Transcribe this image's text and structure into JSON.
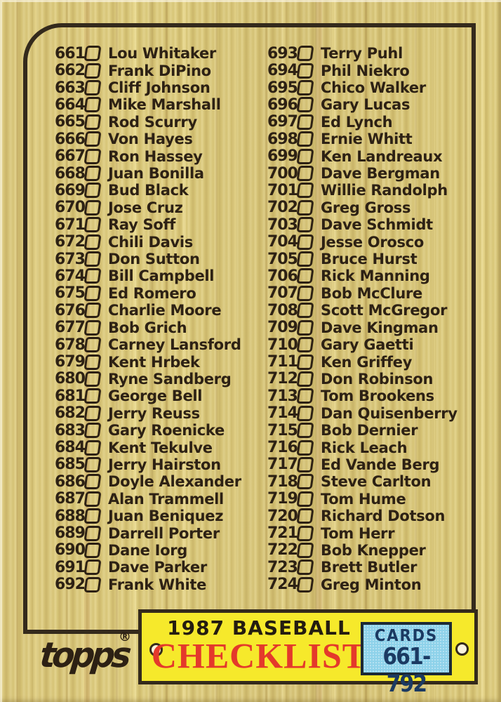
{
  "card": {
    "brand_logo": "topps",
    "registered_mark": "®",
    "banner": {
      "title_line1": "1987 BASEBALL",
      "title_line2": "CHECKLIST",
      "cards_label": "CARDS",
      "cards_range": "661-792"
    },
    "colors": {
      "wood": "#d3c06e",
      "frame": "#342a1c",
      "ink": "#2d2114",
      "banner_yellow": "#f6e92b",
      "checklist_red": "#e4392b",
      "cards_box_blue": "#8ed2ea",
      "cards_text_navy": "#1b3a62"
    }
  },
  "checklist": {
    "left": [
      {
        "num": "661",
        "name": "Lou Whitaker"
      },
      {
        "num": "662",
        "name": "Frank DiPino"
      },
      {
        "num": "663",
        "name": "Cliff Johnson"
      },
      {
        "num": "664",
        "name": "Mike Marshall"
      },
      {
        "num": "665",
        "name": "Rod Scurry"
      },
      {
        "num": "666",
        "name": "Von Hayes"
      },
      {
        "num": "667",
        "name": "Ron Hassey"
      },
      {
        "num": "668",
        "name": "Juan Bonilla"
      },
      {
        "num": "669",
        "name": "Bud Black"
      },
      {
        "num": "670",
        "name": "Jose Cruz"
      },
      {
        "num": "671",
        "name": "Ray Soff"
      },
      {
        "num": "672",
        "name": "Chili Davis"
      },
      {
        "num": "673",
        "name": "Don Sutton"
      },
      {
        "num": "674",
        "name": "Bill Campbell"
      },
      {
        "num": "675",
        "name": "Ed Romero"
      },
      {
        "num": "676",
        "name": "Charlie Moore"
      },
      {
        "num": "677",
        "name": "Bob Grich"
      },
      {
        "num": "678",
        "name": "Carney Lansford"
      },
      {
        "num": "679",
        "name": "Kent Hrbek"
      },
      {
        "num": "680",
        "name": "Ryne Sandberg"
      },
      {
        "num": "681",
        "name": "George Bell"
      },
      {
        "num": "682",
        "name": "Jerry Reuss"
      },
      {
        "num": "683",
        "name": "Gary Roenicke"
      },
      {
        "num": "684",
        "name": "Kent Tekulve"
      },
      {
        "num": "685",
        "name": "Jerry Hairston"
      },
      {
        "num": "686",
        "name": "Doyle Alexander"
      },
      {
        "num": "687",
        "name": "Alan Trammell"
      },
      {
        "num": "688",
        "name": "Juan Beniquez"
      },
      {
        "num": "689",
        "name": "Darrell Porter"
      },
      {
        "num": "690",
        "name": "Dane Iorg"
      },
      {
        "num": "691",
        "name": "Dave Parker"
      },
      {
        "num": "692",
        "name": "Frank White"
      }
    ],
    "right": [
      {
        "num": "693",
        "name": "Terry Puhl"
      },
      {
        "num": "694",
        "name": "Phil Niekro"
      },
      {
        "num": "695",
        "name": "Chico Walker"
      },
      {
        "num": "696",
        "name": "Gary Lucas"
      },
      {
        "num": "697",
        "name": "Ed Lynch"
      },
      {
        "num": "698",
        "name": "Ernie Whitt"
      },
      {
        "num": "699",
        "name": "Ken Landreaux"
      },
      {
        "num": "700",
        "name": "Dave Bergman"
      },
      {
        "num": "701",
        "name": "Willie Randolph"
      },
      {
        "num": "702",
        "name": "Greg Gross"
      },
      {
        "num": "703",
        "name": "Dave Schmidt"
      },
      {
        "num": "704",
        "name": "Jesse Orosco"
      },
      {
        "num": "705",
        "name": "Bruce Hurst"
      },
      {
        "num": "706",
        "name": "Rick Manning"
      },
      {
        "num": "707",
        "name": "Bob McClure"
      },
      {
        "num": "708",
        "name": "Scott McGregor"
      },
      {
        "num": "709",
        "name": "Dave Kingman"
      },
      {
        "num": "710",
        "name": "Gary Gaetti"
      },
      {
        "num": "711",
        "name": "Ken Griffey"
      },
      {
        "num": "712",
        "name": "Don Robinson"
      },
      {
        "num": "713",
        "name": "Tom Brookens"
      },
      {
        "num": "714",
        "name": "Dan Quisenberry"
      },
      {
        "num": "715",
        "name": "Bob Dernier"
      },
      {
        "num": "716",
        "name": "Rick Leach"
      },
      {
        "num": "717",
        "name": "Ed Vande Berg"
      },
      {
        "num": "718",
        "name": "Steve Carlton"
      },
      {
        "num": "719",
        "name": "Tom Hume"
      },
      {
        "num": "720",
        "name": "Richard Dotson"
      },
      {
        "num": "721",
        "name": "Tom Herr"
      },
      {
        "num": "722",
        "name": "Bob Knepper"
      },
      {
        "num": "723",
        "name": "Brett Butler"
      },
      {
        "num": "724",
        "name": "Greg Minton"
      }
    ]
  }
}
